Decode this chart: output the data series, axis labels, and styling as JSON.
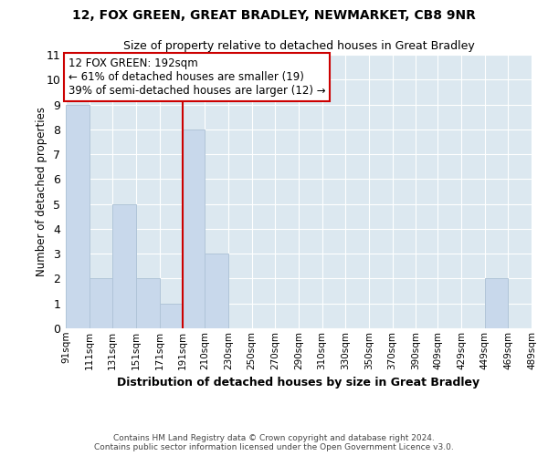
{
  "title": "12, FOX GREEN, GREAT BRADLEY, NEWMARKET, CB8 9NR",
  "subtitle": "Size of property relative to detached houses in Great Bradley",
  "xlabel": "Distribution of detached houses by size in Great Bradley",
  "ylabel": "Number of detached properties",
  "bar_color": "#c8d8eb",
  "bar_edge_color": "#b0c4d8",
  "ref_line_color": "#cc0000",
  "annotation_title": "12 FOX GREEN: 192sqm",
  "annotation_line1": "← 61% of detached houses are smaller (19)",
  "annotation_line2": "39% of semi-detached houses are larger (12) →",
  "bins": [
    91,
    111,
    131,
    151,
    171,
    191,
    210,
    230,
    250,
    270,
    290,
    310,
    330,
    350,
    370,
    390,
    409,
    429,
    449,
    469,
    489
  ],
  "bin_labels": [
    "91sqm",
    "111sqm",
    "131sqm",
    "151sqm",
    "171sqm",
    "191sqm",
    "210sqm",
    "230sqm",
    "250sqm",
    "270sqm",
    "290sqm",
    "310sqm",
    "330sqm",
    "350sqm",
    "370sqm",
    "390sqm",
    "409sqm",
    "429sqm",
    "449sqm",
    "469sqm",
    "489sqm"
  ],
  "counts": [
    9,
    2,
    5,
    2,
    1,
    8,
    3,
    0,
    0,
    0,
    0,
    0,
    0,
    0,
    0,
    0,
    0,
    0,
    2,
    0
  ],
  "ylim": [
    0,
    11
  ],
  "yticks": [
    0,
    1,
    2,
    3,
    4,
    5,
    6,
    7,
    8,
    9,
    10,
    11
  ],
  "footer_line1": "Contains HM Land Registry data © Crown copyright and database right 2024.",
  "footer_line2": "Contains public sector information licensed under the Open Government Licence v3.0.",
  "background_color": "#ffffff",
  "plot_bg_color": "#dce8f0",
  "grid_color": "#ffffff"
}
